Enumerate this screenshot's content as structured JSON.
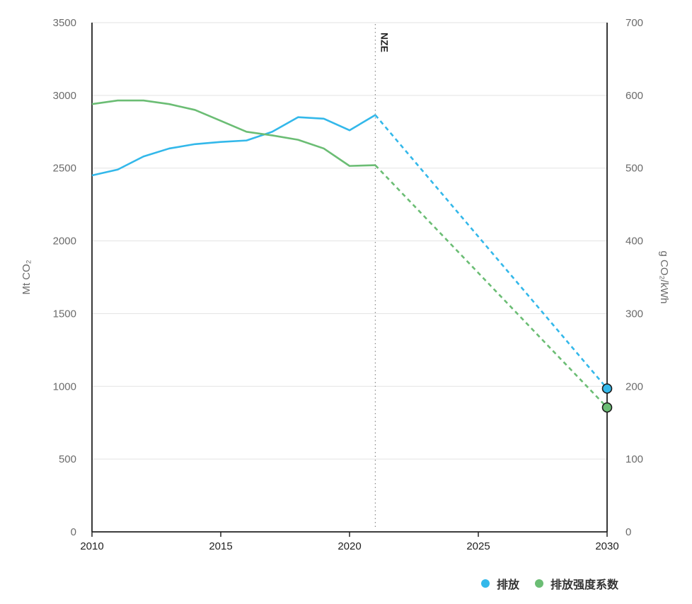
{
  "chart_data": {
    "type": "line",
    "x_range": [
      2010,
      2030
    ],
    "x_ticks": [
      "2010",
      "2015",
      "2020",
      "2025",
      "2030"
    ],
    "y_left": {
      "label": "Mt CO₂",
      "range": [
        0,
        3500
      ],
      "ticks": [
        "0",
        "500",
        "1000",
        "1500",
        "2000",
        "2500",
        "3000",
        "3500"
      ]
    },
    "y_right": {
      "label": "g CO₂/kWh",
      "range": [
        0,
        700
      ],
      "ticks": [
        "0",
        "100",
        "200",
        "300",
        "400",
        "500",
        "600",
        "700"
      ]
    },
    "grid": "horizontal",
    "annotation": {
      "x": 2021,
      "text": "NZE",
      "style": "dotted vertical line"
    },
    "series": [
      {
        "name": "排放",
        "axis": "left",
        "color": "#33b8ea",
        "x": [
          2010,
          2011,
          2012,
          2013,
          2014,
          2015,
          2016,
          2017,
          2018,
          2019,
          2020,
          2021
        ],
        "values": [
          2450,
          2490,
          2580,
          2635,
          2665,
          2680,
          2690,
          2750,
          2850,
          2840,
          2760,
          2865
        ],
        "projection": {
          "x": [
            2021,
            2030
          ],
          "values": [
            2865,
            985
          ]
        }
      },
      {
        "name": "排放强度系数",
        "axis": "right",
        "color": "#6bbd74",
        "x": [
          2010,
          2011,
          2012,
          2013,
          2014,
          2015,
          2016,
          2017,
          2018,
          2019,
          2020,
          2021
        ],
        "values": [
          588,
          593,
          593,
          588,
          580,
          565,
          550,
          545,
          539,
          527,
          503,
          504
        ],
        "projection": {
          "x": [
            2021,
            2030
          ],
          "values": [
            504,
            171
          ]
        }
      }
    ]
  }
}
